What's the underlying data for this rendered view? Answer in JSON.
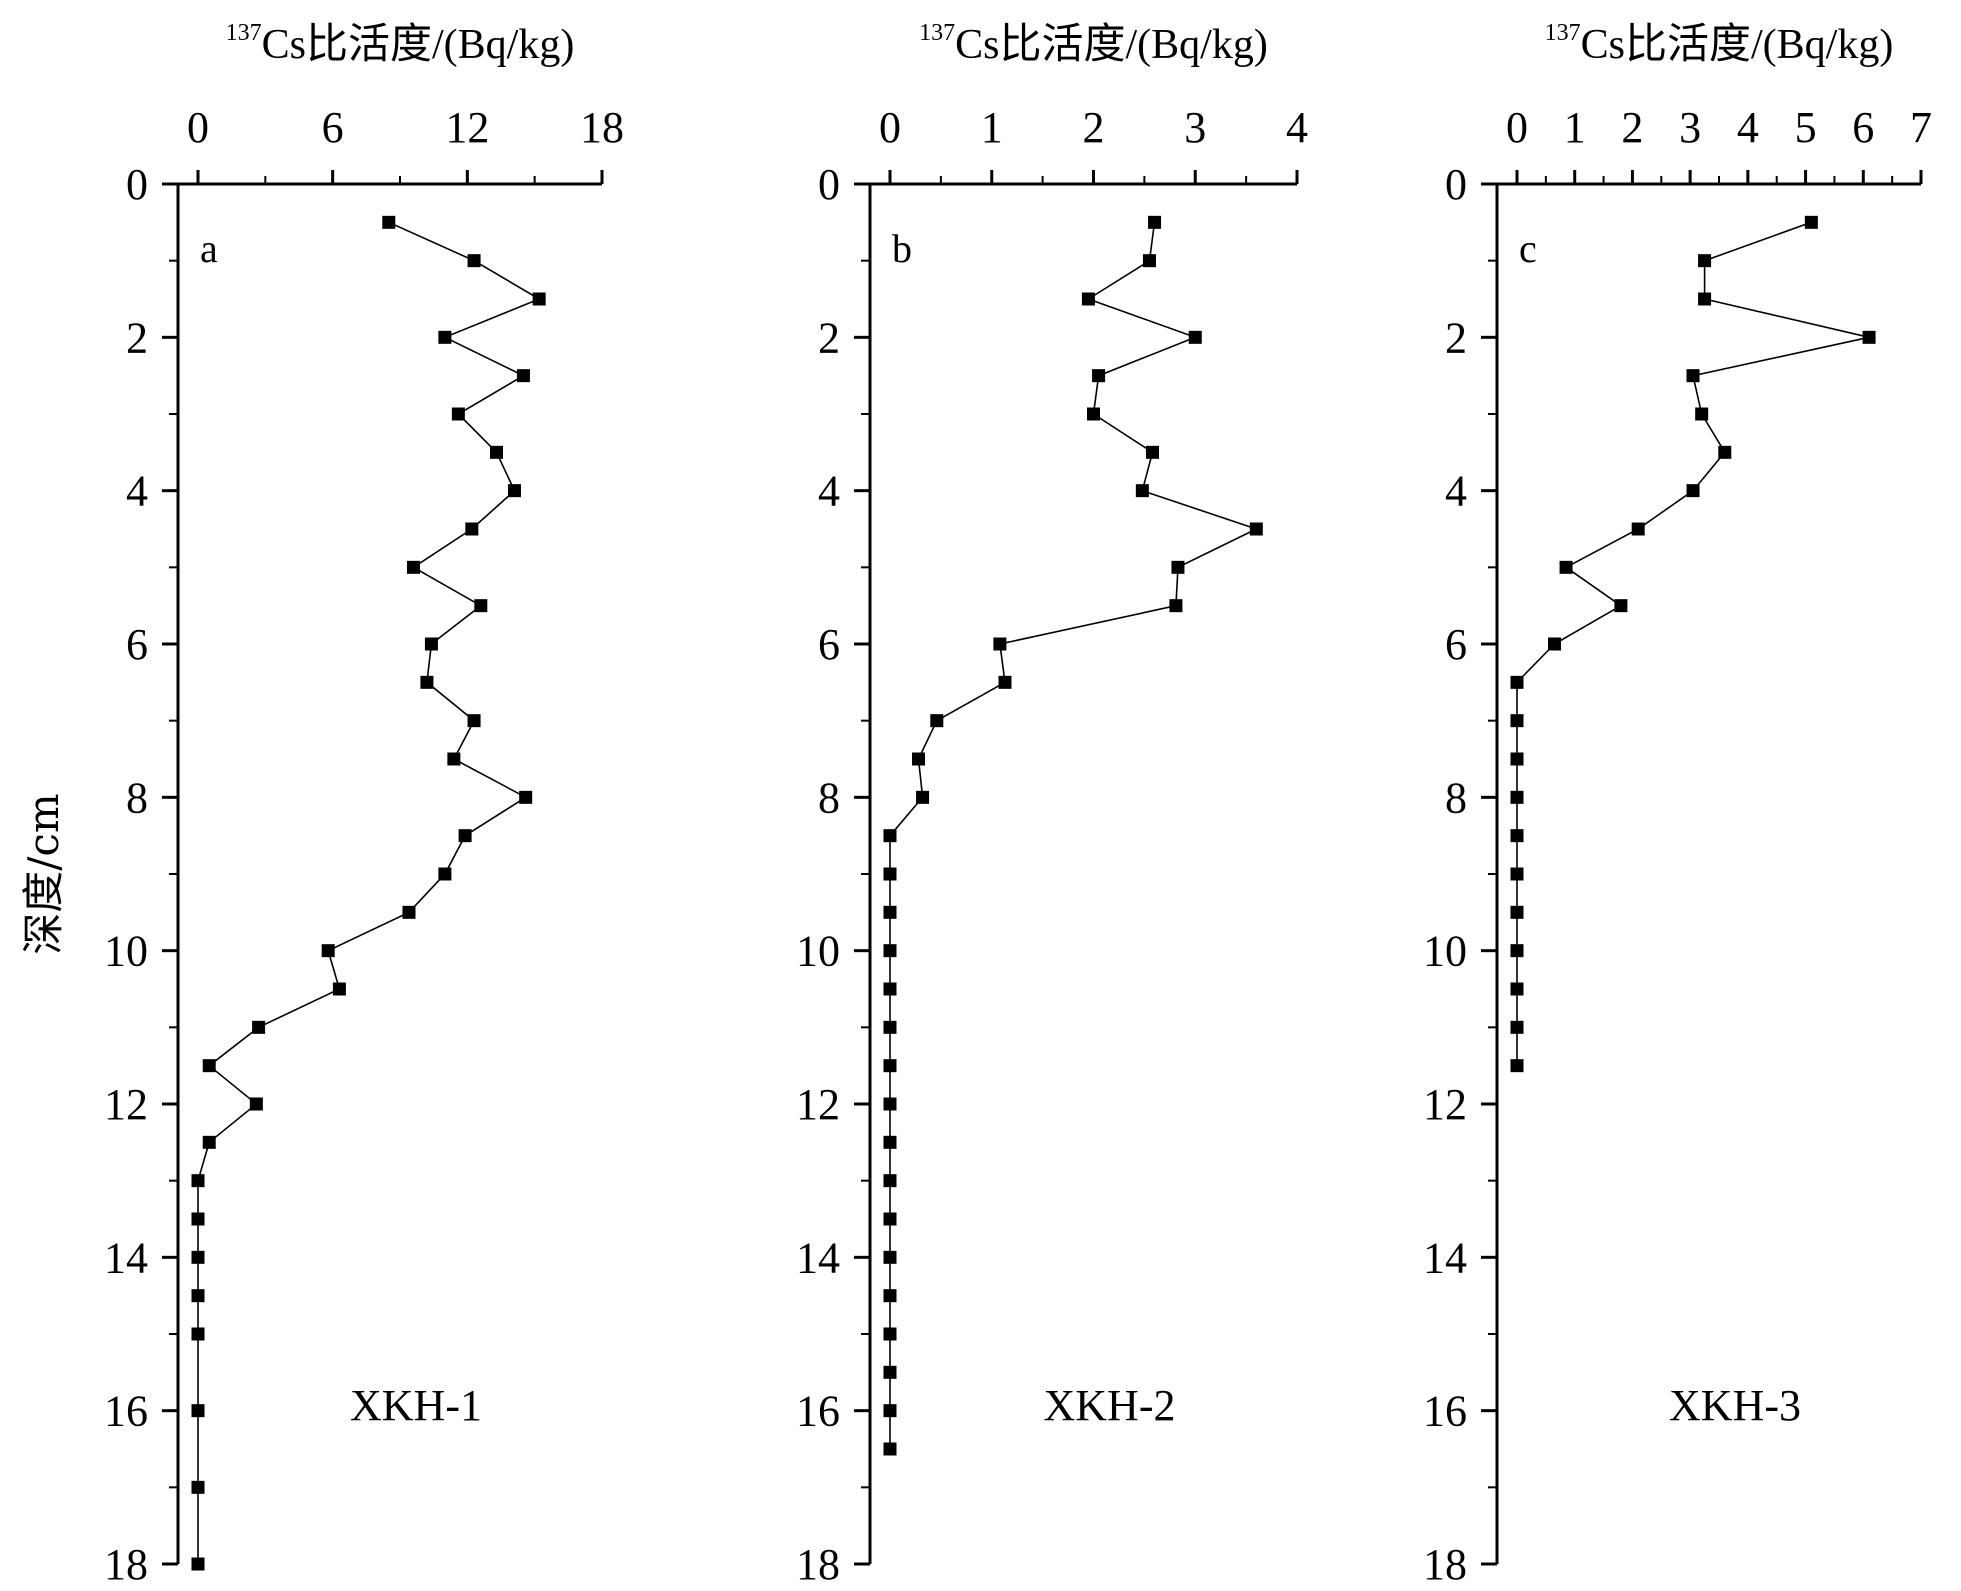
{
  "ylabel": "深度/cm",
  "chart_data": [
    {
      "type": "line",
      "panel": "a",
      "site": "XKH-1",
      "xlabel_sup": "137",
      "xlabel": "Cs比活度/(Bq/kg)",
      "ylabel": "深度/cm",
      "xlim": [
        0,
        18
      ],
      "xticks": [
        0,
        6,
        12,
        18
      ],
      "ylim": [
        0,
        18
      ],
      "yticks": [
        0,
        2,
        4,
        6,
        8,
        10,
        12,
        14,
        16,
        18
      ],
      "x_axis_position": "top",
      "y_inverted": true,
      "series": [
        {
          "depth": [
            0.5,
            1,
            1.5,
            2,
            2.5,
            3,
            3.5,
            4,
            4.5,
            5,
            5.5,
            6,
            6.5,
            7,
            7.5,
            8,
            8.5,
            9,
            9.5,
            10,
            10.5,
            11,
            11.5,
            12,
            12.5,
            13,
            13.5,
            14,
            14.5,
            15,
            16,
            17,
            18
          ],
          "activity": [
            8.5,
            12.3,
            15.2,
            11.0,
            14.5,
            11.6,
            13.3,
            14.1,
            12.2,
            9.6,
            12.6,
            10.4,
            10.2,
            12.3,
            11.4,
            14.6,
            11.9,
            11.0,
            9.4,
            5.8,
            6.3,
            2.7,
            0.5,
            2.6,
            0.5,
            0,
            0,
            0,
            0,
            0,
            0,
            0,
            0
          ]
        }
      ]
    },
    {
      "type": "line",
      "panel": "b",
      "site": "XKH-2",
      "xlabel_sup": "137",
      "xlabel": "Cs比活度/(Bq/kg)",
      "xlim": [
        0,
        4
      ],
      "xticks": [
        0,
        1,
        2,
        3,
        4
      ],
      "ylim": [
        0,
        18
      ],
      "yticks": [
        0,
        2,
        4,
        6,
        8,
        10,
        12,
        14,
        16,
        18
      ],
      "x_axis_position": "top",
      "y_inverted": true,
      "series": [
        {
          "depth": [
            0.5,
            1,
            1.5,
            2,
            2.5,
            3,
            3.5,
            4,
            4.5,
            5,
            5.5,
            6,
            6.5,
            7,
            7.5,
            8,
            8.5,
            9,
            9.5,
            10,
            10.5,
            11,
            11.5,
            12,
            12.5,
            13,
            13.5,
            14,
            14.5,
            15,
            15.5,
            16,
            16.5
          ],
          "activity": [
            2.6,
            2.55,
            1.95,
            3.0,
            2.05,
            2.0,
            2.58,
            2.48,
            3.6,
            2.83,
            2.81,
            1.08,
            1.13,
            0.46,
            0.28,
            0.32,
            0,
            0,
            0,
            0,
            0,
            0,
            0,
            0,
            0,
            0,
            0,
            0,
            0,
            0,
            0,
            0,
            0
          ]
        }
      ]
    },
    {
      "type": "line",
      "panel": "c",
      "site": "XKH-3",
      "xlabel_sup": "137",
      "xlabel": "Cs比活度/(Bq/kg)",
      "xlim": [
        0,
        7
      ],
      "xticks": [
        0,
        1,
        2,
        3,
        4,
        5,
        6,
        7
      ],
      "ylim": [
        0,
        18
      ],
      "yticks": [
        0,
        2,
        4,
        6,
        8,
        10,
        12,
        14,
        16,
        18
      ],
      "x_axis_position": "top",
      "y_inverted": true,
      "series": [
        {
          "depth": [
            0.5,
            1,
            1.5,
            2,
            2.5,
            3,
            3.5,
            4,
            4.5,
            5,
            5.5,
            6,
            6.5,
            7,
            7.5,
            8,
            8.5,
            9,
            9.5,
            10,
            10.5,
            11,
            11.5
          ],
          "activity": [
            5.1,
            3.25,
            3.25,
            6.1,
            3.05,
            3.2,
            3.6,
            3.05,
            2.1,
            0.85,
            1.8,
            0.65,
            0,
            0,
            0,
            0,
            0,
            0,
            0,
            0,
            0,
            0,
            0
          ]
        }
      ]
    }
  ]
}
